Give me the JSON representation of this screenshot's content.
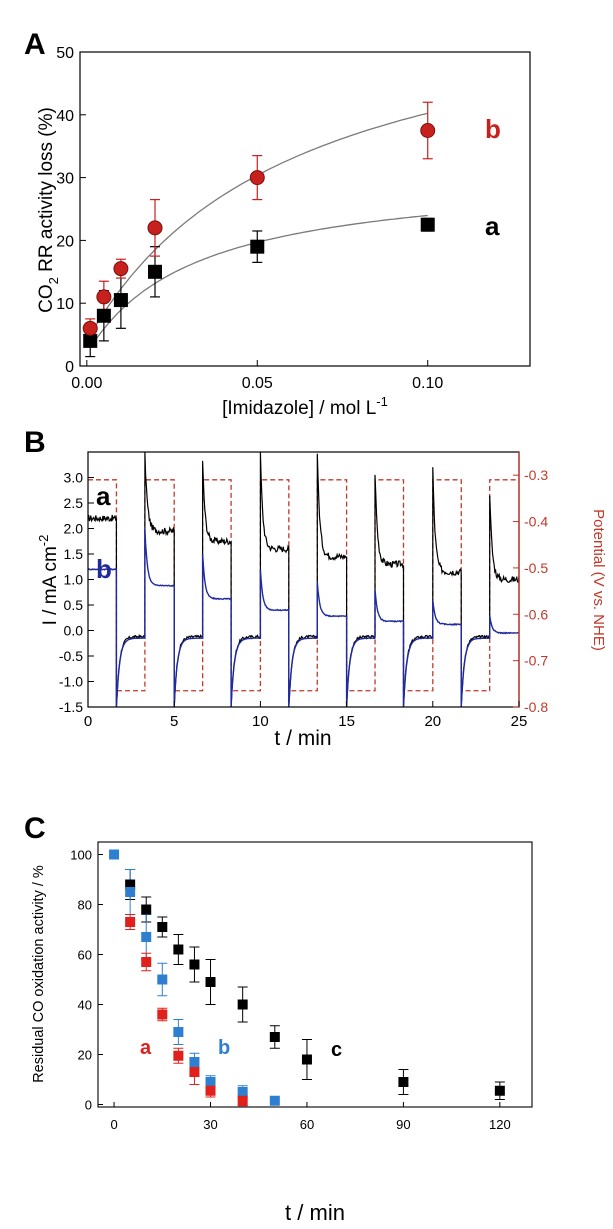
{
  "chart_data": [
    {
      "panel": "A",
      "type": "scatter",
      "xlabel": "[Imidazole] / mol L",
      "xlabel_sup": "-1",
      "ylabel_pre": "CO",
      "ylabel_sub": "2",
      "ylabel_post": " RR activity loss (%)",
      "xlim": [
        -0.002,
        0.13
      ],
      "ylim": [
        0,
        50
      ],
      "xticks": [
        0.0,
        0.05,
        0.1
      ],
      "xtick_labels": [
        "0.00",
        "0.05",
        "0.10"
      ],
      "yticks": [
        0,
        10,
        20,
        30,
        40,
        50
      ],
      "ytick_labels": [
        "0",
        "10",
        "20",
        "30",
        "40",
        "50"
      ],
      "grid": false,
      "series": [
        {
          "name": "a",
          "color": "#000000",
          "marker": "square",
          "x": [
            0.001,
            0.005,
            0.01,
            0.02,
            0.05,
            0.1
          ],
          "y": [
            4,
            8,
            10.5,
            15,
            19,
            22.5
          ],
          "err": [
            2.5,
            4,
            4.5,
            4,
            2.5,
            1
          ],
          "fit": {
            "ymax": 29,
            "k": 0.032,
            "y0": 2
          }
        },
        {
          "name": "b",
          "color": "#c8201d",
          "marker": "circle",
          "x": [
            0.001,
            0.005,
            0.01,
            0.02,
            0.05,
            0.1
          ],
          "y": [
            6,
            11,
            15.5,
            22,
            30,
            37.5
          ],
          "err": [
            1.5,
            2.5,
            1.5,
            4.5,
            3.5,
            4.5
          ],
          "fit": {
            "ymax": 58,
            "k": 0.06,
            "y0": 4
          }
        }
      ]
    },
    {
      "panel": "B",
      "type": "line",
      "xlabel": "t / min",
      "ylabel": "I / mA cm",
      "ylabel_sup": "-2",
      "y2label": "Potential (V vs. NHE)",
      "y2color": "#c0392b",
      "xlim": [
        0,
        25
      ],
      "ylim": [
        -1.5,
        3.5
      ],
      "y2lim": [
        -0.8,
        -0.25
      ],
      "xticks": [
        0,
        5,
        10,
        15,
        20,
        25
      ],
      "xtick_labels": [
        "0",
        "5",
        "10",
        "15",
        "20",
        "25"
      ],
      "yticks": [
        -1.5,
        -1.0,
        -0.5,
        0.0,
        0.5,
        1.0,
        1.5,
        2.0,
        2.5,
        3.0
      ],
      "ytick_labels": [
        "-1.5",
        "-1.0",
        "-0.5",
        "0.0",
        "0.5",
        "1.0",
        "1.5",
        "2.0",
        "2.5",
        "3.0"
      ],
      "y2ticks": [
        -0.8,
        -0.7,
        -0.6,
        -0.5,
        -0.4,
        -0.3
      ],
      "y2tick_labels": [
        "-0.8",
        "-0.7",
        "-0.6",
        "-0.5",
        "-0.4",
        "-0.3"
      ],
      "potential_high": -0.31,
      "potential_low": -0.765,
      "potential_switch_times": [
        0,
        1.65,
        3.3,
        5.0,
        6.65,
        8.3,
        10.0,
        11.65,
        13.3,
        15.0,
        16.65,
        18.3,
        20.0,
        21.65,
        23.3,
        25.0
      ],
      "series": [
        {
          "name": "a",
          "color": "#000000",
          "high_levels": [
            2.2,
            1.95,
            1.75,
            1.6,
            1.45,
            1.3,
            1.15,
            1.0
          ],
          "high_spike": [
            null,
            3.5,
            3.3,
            3.5,
            3.5,
            3.1,
            3.2,
            2.7
          ],
          "low_level": -0.12
        },
        {
          "name": "b",
          "color": "#1f2a9e",
          "high_levels": [
            1.2,
            0.88,
            0.62,
            0.4,
            0.28,
            0.18,
            0.12,
            -0.05
          ],
          "high_spike": [
            null,
            2.0,
            1.5,
            1.2,
            0.95,
            0.8,
            0.6,
            0.3
          ],
          "low_level": -0.15
        }
      ]
    },
    {
      "panel": "C",
      "type": "scatter",
      "xlabel": "t / min",
      "ylabel": "Residual CO oxidation activity / %",
      "xlim": [
        -5,
        130
      ],
      "ylim": [
        -1,
        105
      ],
      "xticks": [
        0,
        30,
        60,
        90,
        120
      ],
      "xtick_labels": [
        "0",
        "30",
        "60",
        "90",
        "120"
      ],
      "yticks": [
        0,
        20,
        40,
        60,
        80,
        100
      ],
      "ytick_labels": [
        "0",
        "20",
        "40",
        "60",
        "80",
        "100"
      ],
      "grid": false,
      "series": [
        {
          "name": "c",
          "color": "#000000",
          "x": [
            5,
            10,
            15,
            20,
            25,
            30,
            40,
            50,
            60,
            90,
            120
          ],
          "y": [
            88,
            78,
            71,
            62,
            56,
            49,
            40,
            27,
            18,
            9,
            5.5
          ],
          "err": [
            6,
            5,
            4,
            6,
            7,
            9,
            7,
            4.5,
            8,
            5,
            3.5
          ]
        },
        {
          "name": "b",
          "color": "#2f7fd1",
          "x": [
            0,
            5,
            10,
            15,
            20,
            25,
            30,
            40,
            50
          ],
          "y": [
            100,
            85,
            67,
            50,
            29,
            17,
            9,
            5,
            1.5
          ],
          "err": [
            0,
            9,
            9,
            6.5,
            5,
            3.5,
            2.5,
            2.5,
            0
          ]
        },
        {
          "name": "a",
          "color": "#e0201b",
          "x": [
            5,
            10,
            15,
            20,
            25,
            30,
            40
          ],
          "y": [
            73,
            57,
            36,
            19.5,
            13,
            5.5,
            1.5
          ],
          "err": [
            3,
            3.5,
            2.5,
            3,
            5,
            2.5,
            2
          ]
        }
      ]
    }
  ]
}
